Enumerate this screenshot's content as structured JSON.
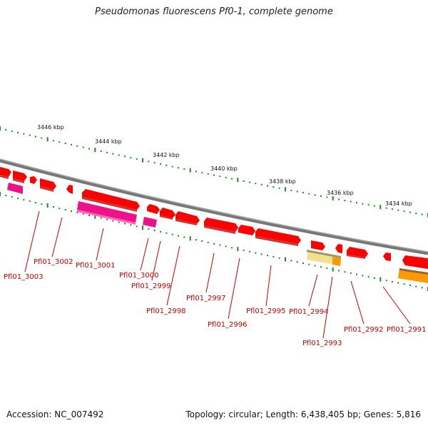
{
  "title": "Pseudomonas fluorescens Pf0-1, complete genome",
  "footer": {
    "accession": "Accession: NC_007492",
    "summary": "Topology: circular; Length: 6,438,405 bp; Genes: 5,816"
  },
  "colors": {
    "backbone": "#808080",
    "gene_forward": "#ff0000",
    "gene_reverse": "#ff0000",
    "gene_pink": "#ee1188",
    "gene_yellow": "#f0e090",
    "gene_orange": "#ff9900",
    "ticks": "#228822",
    "label": "#cc0000"
  },
  "scale_labels": [
    "3446 kbp",
    "3444 kbp",
    "3442 kbp",
    "3440 kbp",
    "3438 kbp",
    "3436 kbp",
    "3434 kbp"
  ],
  "gene_labels": [
    "Pfl01_3003",
    "Pfl01_3002",
    "Pfl01_3001",
    "Pfl01_3000",
    "Pfl01_2999",
    "Pfl01_2998",
    "Pfl01_2997",
    "Pfl01_2996",
    "Pfl01_2995",
    "Pfl01_2994",
    "Pfl01_2993",
    "Pfl01_2992",
    "Pfl01_2991"
  ]
}
